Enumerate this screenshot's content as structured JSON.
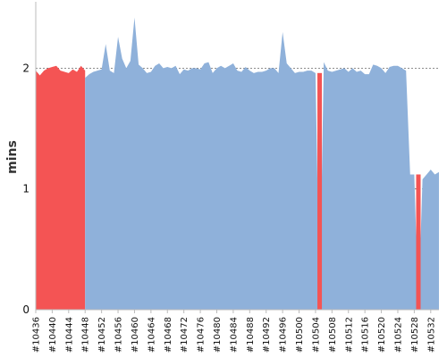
{
  "chart_data": {
    "type": "area",
    "title": "",
    "xlabel": "",
    "ylabel": "mins",
    "ylim": [
      0,
      2.55
    ],
    "yticks": [
      0,
      1,
      2
    ],
    "grid": "horizontal dotted",
    "colors": {
      "ok": "#8fb1da",
      "fail": "#f45454",
      "grid": "#666666",
      "axis": "#bbbbbb"
    },
    "x_start": 10436,
    "x_end": 10533,
    "x_tick_labels": [
      "#10436",
      "#10440",
      "#10444",
      "#10448",
      "#10452",
      "#10456",
      "#10460",
      "#10464",
      "#10468",
      "#10472",
      "#10476",
      "#10480",
      "#10484",
      "#10488",
      "#10492",
      "#10496",
      "#10500",
      "#10504",
      "#10508",
      "#10512",
      "#10516",
      "#10520",
      "#10524",
      "#10528",
      "#10532"
    ],
    "series": [
      {
        "status": "fail",
        "points": [
          [
            10436,
            1.98
          ],
          [
            10437,
            1.94
          ],
          [
            10438,
            1.98
          ],
          [
            10439,
            2.0
          ],
          [
            10440,
            2.01
          ],
          [
            10441,
            2.02
          ],
          [
            10442,
            1.98
          ],
          [
            10443,
            1.97
          ],
          [
            10444,
            1.96
          ],
          [
            10445,
            1.99
          ],
          [
            10446,
            1.97
          ],
          [
            10447,
            2.02
          ],
          [
            10448,
            1.98
          ]
        ]
      },
      {
        "status": "ok",
        "points": [
          [
            10448,
            1.92
          ],
          [
            10449,
            1.95
          ],
          [
            10450,
            1.97
          ],
          [
            10451,
            1.98
          ],
          [
            10452,
            1.99
          ],
          [
            10453,
            2.2
          ],
          [
            10454,
            1.98
          ],
          [
            10455,
            1.96
          ],
          [
            10456,
            2.26
          ],
          [
            10457,
            2.08
          ],
          [
            10458,
            2.0
          ],
          [
            10459,
            2.06
          ],
          [
            10460,
            2.42
          ],
          [
            10461,
            2.03
          ],
          [
            10462,
            2.0
          ],
          [
            10463,
            1.96
          ],
          [
            10464,
            1.97
          ],
          [
            10465,
            2.02
          ],
          [
            10466,
            2.04
          ],
          [
            10467,
            2.0
          ],
          [
            10468,
            2.01
          ],
          [
            10469,
            2.0
          ],
          [
            10470,
            2.02
          ],
          [
            10471,
            1.95
          ],
          [
            10472,
            1.99
          ],
          [
            10473,
            1.98
          ],
          [
            10474,
            2.0
          ],
          [
            10475,
            2.0
          ],
          [
            10476,
            1.99
          ],
          [
            10477,
            2.04
          ],
          [
            10478,
            2.05
          ],
          [
            10479,
            1.96
          ],
          [
            10480,
            2.0
          ],
          [
            10481,
            2.02
          ],
          [
            10482,
            2.0
          ],
          [
            10483,
            2.02
          ],
          [
            10484,
            2.04
          ],
          [
            10485,
            1.98
          ],
          [
            10486,
            1.97
          ],
          [
            10487,
            2.01
          ],
          [
            10488,
            1.98
          ],
          [
            10489,
            1.96
          ],
          [
            10490,
            1.97
          ],
          [
            10491,
            1.97
          ],
          [
            10492,
            1.98
          ],
          [
            10493,
            2.0
          ],
          [
            10494,
            2.0
          ],
          [
            10495,
            1.96
          ],
          [
            10496,
            2.3
          ],
          [
            10497,
            2.04
          ],
          [
            10498,
            2.0
          ],
          [
            10499,
            1.96
          ],
          [
            10500,
            1.97
          ],
          [
            10501,
            1.97
          ],
          [
            10502,
            1.98
          ],
          [
            10503,
            1.98
          ],
          [
            10504,
            1.96
          ],
          [
            10505,
            0.0
          ],
          [
            10506,
            2.05
          ],
          [
            10507,
            1.98
          ],
          [
            10508,
            1.97
          ],
          [
            10509,
            1.98
          ],
          [
            10510,
            1.99
          ],
          [
            10511,
            2.0
          ],
          [
            10512,
            1.97
          ],
          [
            10513,
            2.0
          ],
          [
            10514,
            1.97
          ],
          [
            10515,
            1.98
          ],
          [
            10516,
            1.95
          ],
          [
            10517,
            1.95
          ],
          [
            10518,
            2.03
          ],
          [
            10519,
            2.02
          ],
          [
            10520,
            2.0
          ],
          [
            10521,
            1.96
          ],
          [
            10522,
            2.01
          ],
          [
            10523,
            2.02
          ],
          [
            10524,
            2.02
          ],
          [
            10525,
            2.0
          ],
          [
            10526,
            1.98
          ],
          [
            10527,
            1.12
          ],
          [
            10528,
            1.12
          ],
          [
            10529,
            0.0
          ],
          [
            10530,
            1.08
          ],
          [
            10531,
            1.12
          ],
          [
            10532,
            1.16
          ],
          [
            10533,
            1.12
          ],
          [
            10534,
            1.14
          ]
        ]
      }
    ],
    "fail_spikes": [
      [
        10505,
        1.96
      ],
      [
        10529,
        1.12
      ]
    ]
  }
}
